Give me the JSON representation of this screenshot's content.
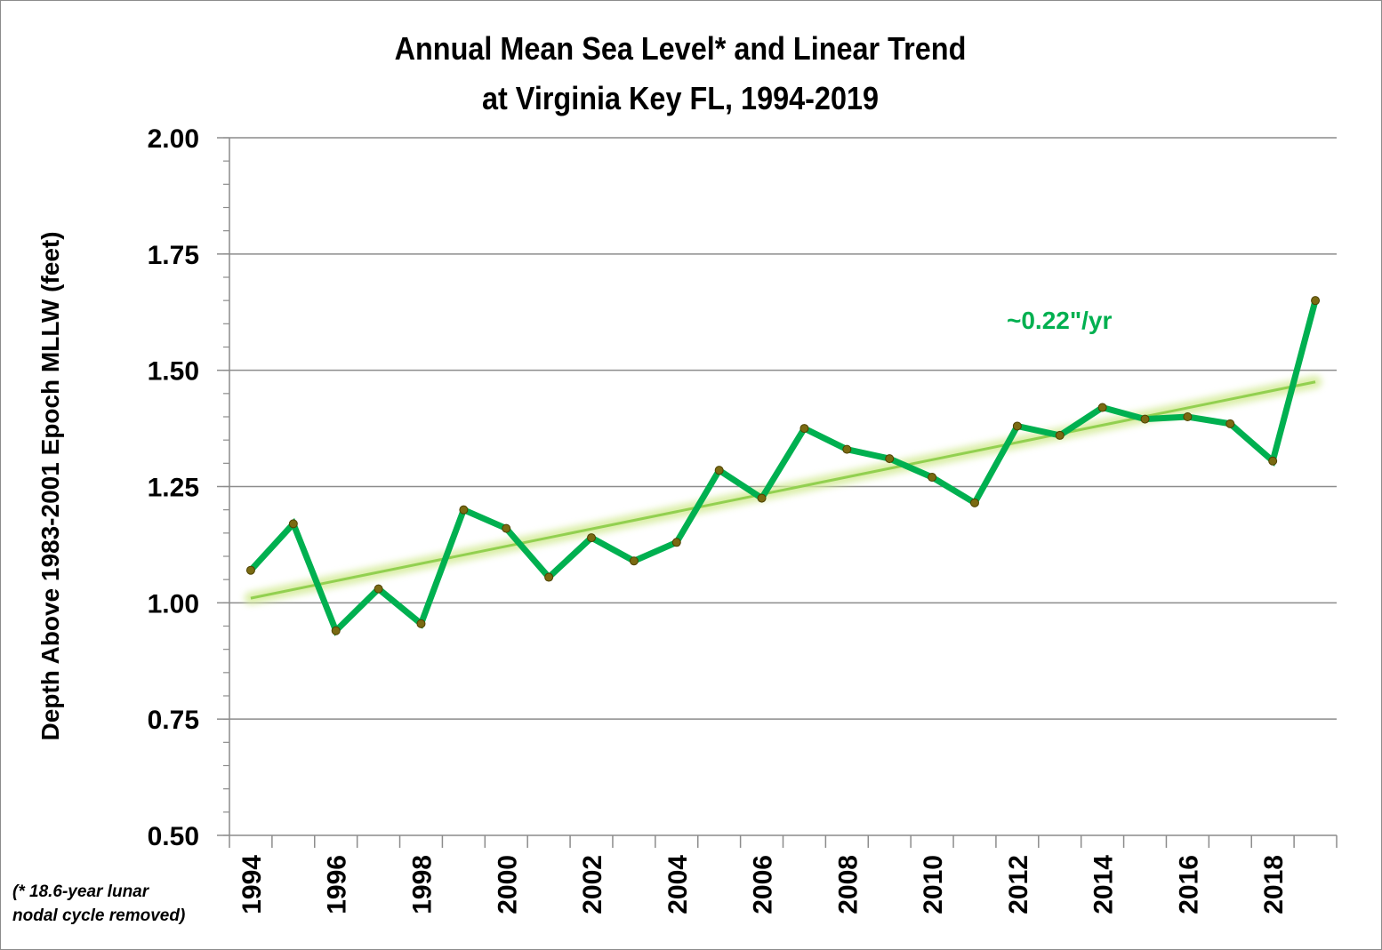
{
  "chart_data": {
    "type": "line",
    "title_lines": [
      "Annual Mean Sea Level* and Linear Trend",
      "at Virginia Key FL, 1994-2019"
    ],
    "ylabel": "Depth Above 1983-2001 Epoch MLLW (feet)",
    "xlabel": "",
    "ylim": [
      0.5,
      2.0
    ],
    "y_major_ticks": [
      "0.50",
      "0.75",
      "1.00",
      "1.25",
      "1.50",
      "1.75",
      "2.00"
    ],
    "x_tick_labels": [
      "1994",
      "1996",
      "1998",
      "2000",
      "2002",
      "2004",
      "2006",
      "2008",
      "2010",
      "2012",
      "2014",
      "2016",
      "2018"
    ],
    "x": [
      1994,
      1995,
      1996,
      1997,
      1998,
      1999,
      2000,
      2001,
      2002,
      2003,
      2004,
      2005,
      2006,
      2007,
      2008,
      2009,
      2010,
      2011,
      2012,
      2013,
      2014,
      2015,
      2016,
      2017,
      2018,
      2019
    ],
    "series": [
      {
        "values": [
          1.07,
          1.17,
          0.94,
          1.03,
          0.955,
          1.2,
          1.16,
          1.055,
          1.14,
          1.09,
          1.13,
          1.285,
          1.225,
          1.375,
          1.33,
          1.31,
          1.27,
          1.215,
          1.38,
          1.36,
          1.42,
          1.395,
          1.4,
          1.385,
          1.305,
          1.65
        ],
        "color": "#00b050"
      }
    ],
    "trend": {
      "start": {
        "x": 1994,
        "y": 1.01
      },
      "end": {
        "x": 2019,
        "y": 1.475
      },
      "color": "#92d050"
    },
    "annotation": {
      "text": "~0.22\"/yr",
      "color": "#00b050"
    },
    "grid": true,
    "legend": "none"
  },
  "footnote": {
    "line1": "(* 18.6-year lunar",
    "line2": "nodal cycle removed)"
  }
}
